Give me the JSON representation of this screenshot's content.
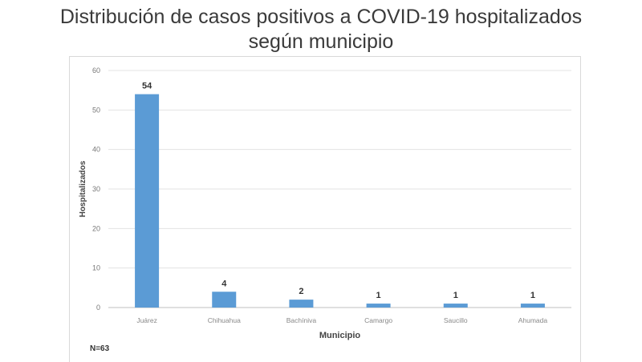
{
  "chart_data": {
    "type": "bar",
    "title": "Distribución de casos positivos a COVID-19 hospitalizados según municipio",
    "title_lines": [
      "Distribución de casos positivos a COVID-19 hospitalizados",
      "según municipio"
    ],
    "xlabel": "Municipio",
    "ylabel": "Hospitalizados",
    "categories": [
      "Juárez",
      "Chihuahua",
      "Bachíniva",
      "Camargo",
      "Saucillo",
      "Ahumada"
    ],
    "values": [
      54,
      4,
      2,
      1,
      1,
      1
    ],
    "ylim": [
      0,
      60
    ],
    "yticks": [
      0,
      10,
      20,
      30,
      40,
      50,
      60
    ],
    "grid": true,
    "bar_color": "#5b9bd5",
    "note": "N=63"
  }
}
